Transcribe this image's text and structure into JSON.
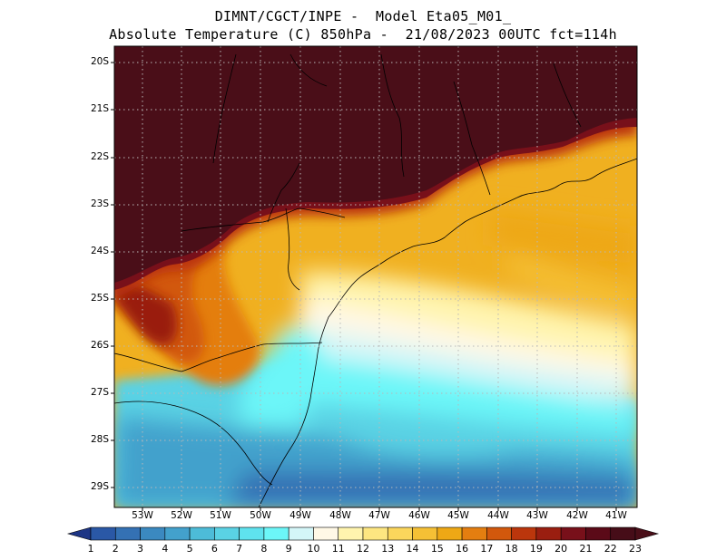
{
  "header": {
    "line1": "DIMNT/CGCT/INPE -  Model Eta05_M01_",
    "line2": "Absolute Temperature (C) 850hPa -  21/08/2023 00UTC fct=114h"
  },
  "map": {
    "lat_labels": [
      "20S",
      "21S",
      "22S",
      "23S",
      "24S",
      "25S",
      "26S",
      "27S",
      "28S",
      "29S"
    ],
    "lon_labels": [
      "53W",
      "52W",
      "51W",
      "50W",
      "49W",
      "48W",
      "47W",
      "46W",
      "45W",
      "44W",
      "43W",
      "42W",
      "41W"
    ]
  },
  "colorbar": {
    "labels": [
      "1",
      "2",
      "3",
      "4",
      "5",
      "6",
      "7",
      "8",
      "9",
      "10",
      "11",
      "12",
      "13",
      "14",
      "15",
      "16",
      "17",
      "18",
      "19",
      "20",
      "21",
      "22",
      "23"
    ],
    "colors": [
      "#24408e",
      "#2a58a6",
      "#3471b4",
      "#3b89c0",
      "#43a1cc",
      "#4dbcd8",
      "#5ad2e4",
      "#5fe2ee",
      "#6cf6f8",
      "#d4f6f8",
      "#fff8e6",
      "#fff4ae",
      "#fde681",
      "#fbd65c",
      "#f5c035",
      "#eea815",
      "#e47e10",
      "#d2580c",
      "#bb360c",
      "#9a1e10",
      "#78101a",
      "#5b0a18",
      "#460d18"
    ],
    "under_color": "#1d3585",
    "over_color": "#4a0e18"
  }
}
